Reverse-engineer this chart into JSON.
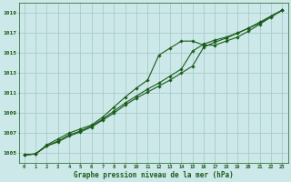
{
  "title": "Graphe pression niveau de la mer (hPa)",
  "background_color": "#cce8e8",
  "grid_color": "#aacccc",
  "line_color": "#1a5c1a",
  "marker_color": "#1a5c1a",
  "x_data": [
    0,
    1,
    2,
    3,
    4,
    5,
    6,
    7,
    8,
    9,
    10,
    11,
    12,
    13,
    14,
    15,
    16,
    17,
    18,
    19,
    20,
    21,
    22,
    23
  ],
  "series1": [
    1004.8,
    1004.9,
    1005.8,
    1006.4,
    1007.0,
    1007.4,
    1007.8,
    1008.6,
    1009.6,
    1010.6,
    1011.5,
    1012.3,
    1014.8,
    1015.5,
    1016.2,
    1016.2,
    1015.8,
    1015.8,
    1016.2,
    1016.6,
    1017.2,
    1017.9,
    1018.6,
    1019.3
  ],
  "series2": [
    1004.8,
    1004.9,
    1005.7,
    1006.2,
    1006.8,
    1007.2,
    1007.7,
    1008.4,
    1009.2,
    1010.0,
    1010.7,
    1011.4,
    1012.0,
    1012.7,
    1013.4,
    1015.2,
    1015.9,
    1016.3,
    1016.6,
    1017.0,
    1017.5,
    1018.1,
    1018.7,
    1019.3
  ],
  "series3": [
    1004.8,
    1004.9,
    1005.7,
    1006.1,
    1006.7,
    1007.1,
    1007.6,
    1008.3,
    1009.0,
    1009.8,
    1010.5,
    1011.1,
    1011.7,
    1012.3,
    1013.0,
    1013.7,
    1015.6,
    1016.1,
    1016.5,
    1017.0,
    1017.5,
    1018.0,
    1018.7,
    1019.3
  ],
  "ylim": [
    1004.0,
    1020.0
  ],
  "yticks": [
    1005,
    1007,
    1009,
    1011,
    1013,
    1015,
    1017,
    1019
  ],
  "xlim": [
    -0.5,
    23.5
  ],
  "xticks": [
    0,
    1,
    2,
    3,
    4,
    5,
    6,
    7,
    8,
    9,
    10,
    11,
    12,
    13,
    14,
    15,
    16,
    17,
    18,
    19,
    20,
    21,
    22,
    23
  ]
}
